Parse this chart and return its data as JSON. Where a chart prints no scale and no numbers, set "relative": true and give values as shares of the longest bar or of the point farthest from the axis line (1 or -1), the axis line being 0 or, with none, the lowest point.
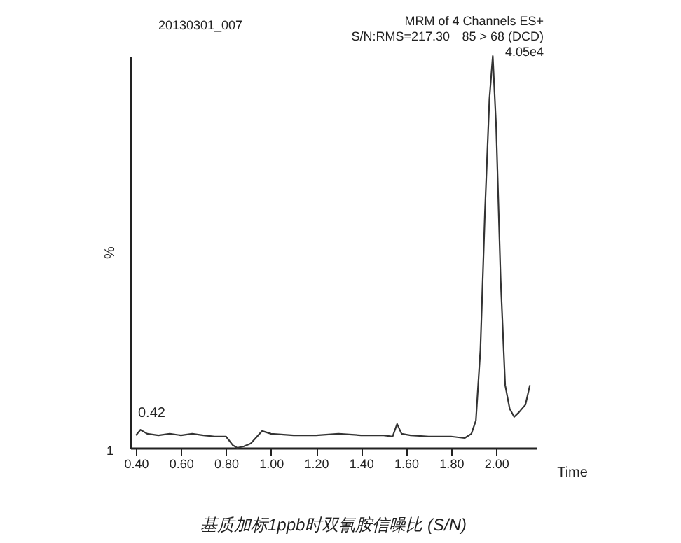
{
  "chart_data": {
    "type": "line",
    "title": "基质加标1ppb时双氰胺信噪比 (S/N)",
    "xlabel": "Time",
    "ylabel": "%",
    "relative": true,
    "grid": false,
    "marker": "none",
    "line_style": "solid",
    "xlim": [
      0.375,
      2.18
    ],
    "xticks": [
      {
        "value": 0.4,
        "label": "0.40"
      },
      {
        "value": 0.6,
        "label": "0.60"
      },
      {
        "value": 0.8,
        "label": "0.80"
      },
      {
        "value": 1.0,
        "label": "1.00"
      },
      {
        "value": 1.2,
        "label": "1.20"
      },
      {
        "value": 1.4,
        "label": "1.40"
      },
      {
        "value": 1.6,
        "label": "1.60"
      },
      {
        "value": 1.8,
        "label": "1.80"
      },
      {
        "value": 2.0,
        "label": "2.00"
      }
    ],
    "x": [
      0.4,
      0.42,
      0.45,
      0.5,
      0.55,
      0.6,
      0.65,
      0.7,
      0.75,
      0.8,
      0.83,
      0.85,
      0.88,
      0.91,
      0.96,
      1.0,
      1.1,
      1.2,
      1.3,
      1.4,
      1.5,
      1.54,
      1.56,
      1.58,
      1.62,
      1.7,
      1.8,
      1.86,
      1.89,
      1.91,
      1.93,
      1.95,
      1.97,
      1.985,
      2.0,
      2.02,
      2.04,
      2.06,
      2.08,
      2.1,
      2.13,
      2.15
    ],
    "series": [
      {
        "color": "#333333",
        "values": [
          0.032,
          0.046,
          0.036,
          0.032,
          0.036,
          0.032,
          0.036,
          0.032,
          0.029,
          0.029,
          0.007,
          0.0,
          0.004,
          0.011,
          0.043,
          0.036,
          0.032,
          0.032,
          0.036,
          0.032,
          0.032,
          0.029,
          0.061,
          0.036,
          0.032,
          0.029,
          0.029,
          0.025,
          0.036,
          0.07,
          0.25,
          0.6,
          0.89,
          1.0,
          0.82,
          0.43,
          0.16,
          0.1,
          0.079,
          0.09,
          0.11,
          0.16
        ]
      }
    ],
    "annotations": [
      "20130301_007",
      "MRM of 4 Channels ES+",
      "S/N:RMS=217.30",
      "85 > 68 (DCD)",
      "4.05e4",
      {
        "text": "0.42",
        "x": 0.42,
        "y": 0.046
      },
      "1"
    ]
  }
}
